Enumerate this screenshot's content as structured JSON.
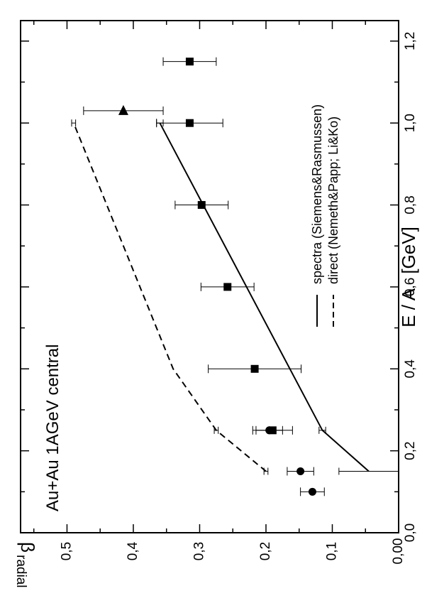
{
  "chart_data": {
    "type": "scatter",
    "title": "",
    "annotation": "Au+Au 1AGeV central",
    "xlabel": "E / A   [GeV]",
    "ylabel_main": "β",
    "ylabel_sub": "radial",
    "xlim": [
      0.0,
      1.25
    ],
    "ylim": [
      0.0,
      0.57
    ],
    "x_ticks": [
      "0,0",
      "0,2",
      "0,4",
      "0,6",
      "0,8",
      "1,0",
      "1,2"
    ],
    "y_ticks": [
      "0,00",
      "0,1",
      "0,2",
      "0,3",
      "0,4",
      "0,5"
    ],
    "y_tick_values": [
      0.0,
      0.1,
      0.2,
      0.3,
      0.4,
      0.5
    ],
    "x_tick_values": [
      0.0,
      0.2,
      0.4,
      0.6,
      0.8,
      1.0,
      1.2
    ],
    "legend_placement": "right-middle",
    "grid": false,
    "lines": [
      {
        "name": "spectra (Siemens&Rasmussen)",
        "style": "solid",
        "x": [
          0.15,
          0.25,
          1.0
        ],
        "y": [
          0.045,
          0.115,
          0.36
        ],
        "errors": [
          [
            0.15,
            0.045,
            0.045
          ],
          [
            0.25,
            0.115,
            0.005
          ],
          [
            1.0,
            0.36,
            0.005
          ]
        ]
      },
      {
        "name": "direct    (Nemeth&Papp; Li&Ko)",
        "style": "dashed",
        "x": [
          0.15,
          0.25,
          0.4,
          1.0
        ],
        "y": [
          0.2,
          0.275,
          0.34,
          0.49
        ],
        "errors": [
          [
            0.15,
            0.2,
            0.003
          ],
          [
            0.25,
            0.275,
            0.003
          ],
          [
            1.0,
            0.49,
            0.003
          ]
        ]
      }
    ],
    "points": [
      {
        "marker": "circle",
        "x": 0.1,
        "y": 0.13,
        "err": 0.018
      },
      {
        "marker": "circle",
        "x": 0.15,
        "y": 0.148,
        "err": 0.02
      },
      {
        "marker": "circle",
        "x": 0.25,
        "y": 0.195,
        "err": 0.02
      },
      {
        "marker": "square",
        "x": 0.25,
        "y": 0.19,
        "err": 0.03
      },
      {
        "marker": "square",
        "x": 0.4,
        "y": 0.217,
        "err": 0.07
      },
      {
        "marker": "square",
        "x": 0.6,
        "y": 0.258,
        "err": 0.04
      },
      {
        "marker": "square",
        "x": 0.8,
        "y": 0.297,
        "err": 0.04
      },
      {
        "marker": "square",
        "x": 1.0,
        "y": 0.315,
        "err": 0.05
      },
      {
        "marker": "square",
        "x": 1.15,
        "y": 0.315,
        "err": 0.04
      },
      {
        "marker": "triangle",
        "x": 1.03,
        "y": 0.415,
        "err": 0.06
      }
    ]
  }
}
